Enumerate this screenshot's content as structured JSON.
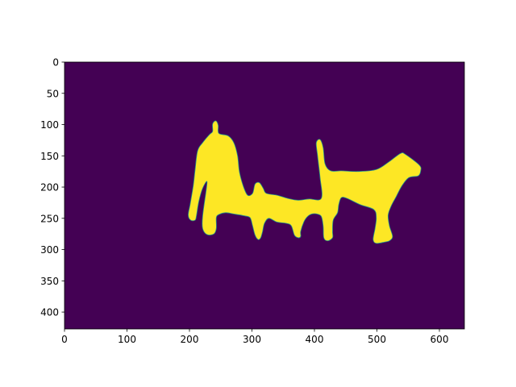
{
  "chart_data": {
    "type": "heatmap",
    "title": "",
    "xlabel": "",
    "ylabel": "",
    "xlim": [
      0,
      640
    ],
    "ylim": [
      427,
      0
    ],
    "x_ticks": [
      0,
      100,
      200,
      300,
      400,
      500,
      600
    ],
    "y_ticks": [
      0,
      50,
      100,
      150,
      200,
      250,
      300,
      350,
      400
    ],
    "colormap": "viridis",
    "colors": {
      "background": "#440154",
      "foreground": "#fde725",
      "edge": "#21918c"
    },
    "values": [
      0,
      1
    ],
    "mask_outline": [
      [
        237,
        99
      ],
      [
        242,
        94
      ],
      [
        246,
        101
      ],
      [
        247,
        114
      ],
      [
        262,
        118
      ],
      [
        271,
        129
      ],
      [
        277,
        150
      ],
      [
        280,
        176
      ],
      [
        286,
        198
      ],
      [
        293,
        213
      ],
      [
        301,
        210
      ],
      [
        305,
        195
      ],
      [
        312,
        193
      ],
      [
        318,
        202
      ],
      [
        323,
        210
      ],
      [
        340,
        213
      ],
      [
        357,
        218
      ],
      [
        374,
        221
      ],
      [
        391,
        219
      ],
      [
        411,
        218
      ],
      [
        409,
        185
      ],
      [
        405,
        150
      ],
      [
        403,
        129
      ],
      [
        409,
        124
      ],
      [
        414,
        137
      ],
      [
        417,
        163
      ],
      [
        426,
        174
      ],
      [
        443,
        174
      ],
      [
        469,
        175
      ],
      [
        499,
        172
      ],
      [
        520,
        159
      ],
      [
        538,
        146
      ],
      [
        546,
        148
      ],
      [
        568,
        165
      ],
      [
        570,
        174
      ],
      [
        566,
        182
      ],
      [
        551,
        185
      ],
      [
        540,
        198
      ],
      [
        531,
        215
      ],
      [
        523,
        230
      ],
      [
        518,
        245
      ],
      [
        520,
        262
      ],
      [
        525,
        279
      ],
      [
        520,
        286
      ],
      [
        512,
        288
      ],
      [
        499,
        290
      ],
      [
        494,
        284
      ],
      [
        497,
        266
      ],
      [
        499,
        249
      ],
      [
        495,
        236
      ],
      [
        473,
        228
      ],
      [
        452,
        218
      ],
      [
        443,
        217
      ],
      [
        439,
        228
      ],
      [
        437,
        241
      ],
      [
        430,
        253
      ],
      [
        429,
        271
      ],
      [
        429,
        281
      ],
      [
        421,
        286
      ],
      [
        415,
        281
      ],
      [
        414,
        262
      ],
      [
        411,
        247
      ],
      [
        404,
        243
      ],
      [
        396,
        243
      ],
      [
        389,
        247
      ],
      [
        383,
        256
      ],
      [
        378,
        271
      ],
      [
        378,
        279
      ],
      [
        374,
        281
      ],
      [
        368,
        277
      ],
      [
        363,
        262
      ],
      [
        355,
        258
      ],
      [
        340,
        256
      ],
      [
        327,
        250
      ],
      [
        320,
        258
      ],
      [
        317,
        271
      ],
      [
        314,
        281
      ],
      [
        310,
        284
      ],
      [
        305,
        277
      ],
      [
        301,
        262
      ],
      [
        297,
        249
      ],
      [
        288,
        246
      ],
      [
        271,
        243
      ],
      [
        258,
        241
      ],
      [
        247,
        244
      ],
      [
        243,
        249
      ],
      [
        243,
        266
      ],
      [
        239,
        275
      ],
      [
        228,
        276
      ],
      [
        221,
        266
      ],
      [
        221,
        247
      ],
      [
        226,
        210
      ],
      [
        228,
        191
      ],
      [
        221,
        202
      ],
      [
        215,
        223
      ],
      [
        211,
        247
      ],
      [
        209,
        253
      ],
      [
        202,
        253
      ],
      [
        198,
        245
      ],
      [
        201,
        228
      ],
      [
        206,
        198
      ],
      [
        209,
        172
      ],
      [
        213,
        142
      ],
      [
        221,
        129
      ],
      [
        232,
        116
      ],
      [
        237,
        111
      ]
    ]
  }
}
